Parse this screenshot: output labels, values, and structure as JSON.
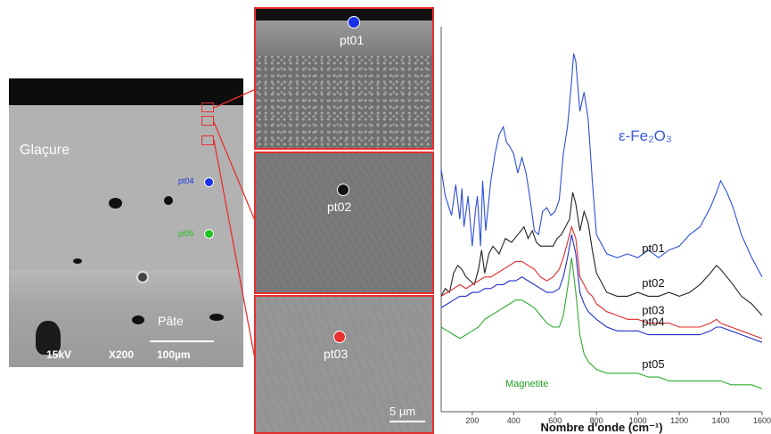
{
  "sem": {
    "label_glacure": "Glaçure",
    "label_pate": "Pâte",
    "voltage": "15kV",
    "magnification": "X200",
    "scale": "100µm",
    "points": [
      {
        "label": "pt04",
        "color": "#1a30e8"
      },
      {
        "label": "pt05",
        "color": "#22c422"
      }
    ]
  },
  "panels": [
    {
      "label": "pt01",
      "color": "#1a30e8"
    },
    {
      "label": "pt02",
      "color": "#111111"
    },
    {
      "label": "pt03",
      "color": "#e8302f"
    }
  ],
  "panel_scale": "5 µm",
  "chart_data": {
    "type": "line",
    "xlabel": "Nombre d'onde (cm⁻¹)",
    "ylabel": "",
    "xlim": [
      50,
      1600
    ],
    "xticks": [
      200,
      400,
      600,
      800,
      1000,
      1200,
      1400,
      1600
    ],
    "annotations": [
      {
        "text": "ε-Fe₂O₃",
        "color": "#3a5bd6"
      },
      {
        "text": "Magnetite",
        "color": "#1e9e1e"
      }
    ],
    "series": [
      {
        "name": "pt01",
        "color": "#2d4fd8",
        "x": [
          50,
          70,
          100,
          120,
          140,
          150,
          160,
          180,
          200,
          215,
          225,
          240,
          250,
          265,
          290,
          310,
          330,
          350,
          365,
          380,
          400,
          420,
          440,
          460,
          480,
          500,
          520,
          540,
          560,
          580,
          600,
          620,
          640,
          660,
          680,
          690,
          700,
          720,
          740,
          760,
          780,
          800,
          850,
          900,
          950,
          1000,
          1050,
          1100,
          1150,
          1200,
          1250,
          1300,
          1350,
          1380,
          1400,
          1430,
          1460,
          1500,
          1550,
          1600
        ],
        "y": [
          0.63,
          0.56,
          0.51,
          0.59,
          0.5,
          0.58,
          0.48,
          0.56,
          0.43,
          0.52,
          0.56,
          0.43,
          0.6,
          0.47,
          0.6,
          0.67,
          0.72,
          0.74,
          0.7,
          0.69,
          0.67,
          0.62,
          0.66,
          0.62,
          0.55,
          0.47,
          0.46,
          0.52,
          0.53,
          0.51,
          0.52,
          0.55,
          0.67,
          0.74,
          0.86,
          0.93,
          0.91,
          0.78,
          0.83,
          0.76,
          0.6,
          0.46,
          0.41,
          0.4,
          0.41,
          0.4,
          0.42,
          0.4,
          0.42,
          0.43,
          0.46,
          0.48,
          0.53,
          0.57,
          0.6,
          0.57,
          0.53,
          0.46,
          0.4,
          0.35
        ]
      },
      {
        "name": "pt02",
        "color": "#222222",
        "x": [
          50,
          70,
          90,
          110,
          130,
          150,
          170,
          190,
          210,
          230,
          245,
          260,
          280,
          300,
          330,
          360,
          390,
          420,
          450,
          470,
          490,
          510,
          530,
          550,
          570,
          590,
          610,
          630,
          650,
          670,
          685,
          700,
          720,
          740,
          760,
          780,
          800,
          850,
          900,
          950,
          1000,
          1050,
          1100,
          1150,
          1200,
          1250,
          1300,
          1350,
          1380,
          1400,
          1430,
          1460,
          1500,
          1550,
          1600
        ],
        "y": [
          0.3,
          0.32,
          0.31,
          0.36,
          0.38,
          0.37,
          0.35,
          0.34,
          0.33,
          0.37,
          0.42,
          0.36,
          0.41,
          0.43,
          0.41,
          0.45,
          0.44,
          0.46,
          0.48,
          0.45,
          0.47,
          0.44,
          0.43,
          0.43,
          0.43,
          0.43,
          0.45,
          0.46,
          0.48,
          0.5,
          0.57,
          0.54,
          0.47,
          0.52,
          0.49,
          0.42,
          0.36,
          0.31,
          0.3,
          0.3,
          0.31,
          0.3,
          0.3,
          0.31,
          0.3,
          0.31,
          0.33,
          0.36,
          0.38,
          0.37,
          0.35,
          0.33,
          0.3,
          0.28,
          0.25
        ]
      },
      {
        "name": "pt03",
        "color": "#e02a2a",
        "x": [
          50,
          80,
          110,
          140,
          170,
          200,
          230,
          260,
          290,
          320,
          350,
          380,
          410,
          440,
          470,
          500,
          530,
          560,
          590,
          620,
          640,
          660,
          680,
          700,
          720,
          740,
          760,
          780,
          800,
          850,
          900,
          950,
          1000,
          1050,
          1100,
          1150,
          1200,
          1250,
          1300,
          1350,
          1380,
          1400,
          1450,
          1500,
          1550,
          1600
        ],
        "y": [
          0.3,
          0.31,
          0.32,
          0.33,
          0.32,
          0.33,
          0.34,
          0.35,
          0.35,
          0.36,
          0.37,
          0.38,
          0.39,
          0.39,
          0.38,
          0.37,
          0.35,
          0.34,
          0.35,
          0.37,
          0.4,
          0.44,
          0.48,
          0.45,
          0.35,
          0.33,
          0.31,
          0.3,
          0.28,
          0.26,
          0.25,
          0.24,
          0.24,
          0.23,
          0.23,
          0.23,
          0.22,
          0.22,
          0.22,
          0.23,
          0.24,
          0.23,
          0.22,
          0.21,
          0.2,
          0.19
        ]
      },
      {
        "name": "pt04",
        "color": "#2230c8",
        "x": [
          50,
          80,
          110,
          140,
          170,
          200,
          230,
          260,
          290,
          320,
          350,
          380,
          410,
          440,
          470,
          500,
          530,
          560,
          590,
          620,
          640,
          660,
          680,
          700,
          720,
          740,
          760,
          780,
          800,
          850,
          900,
          950,
          1000,
          1050,
          1100,
          1150,
          1200,
          1250,
          1300,
          1350,
          1380,
          1400,
          1450,
          1500,
          1550,
          1600
        ],
        "y": [
          0.27,
          0.28,
          0.29,
          0.3,
          0.3,
          0.31,
          0.31,
          0.32,
          0.32,
          0.33,
          0.33,
          0.34,
          0.34,
          0.35,
          0.34,
          0.33,
          0.32,
          0.31,
          0.31,
          0.32,
          0.35,
          0.4,
          0.46,
          0.41,
          0.31,
          0.28,
          0.26,
          0.25,
          0.24,
          0.22,
          0.21,
          0.21,
          0.21,
          0.2,
          0.2,
          0.2,
          0.2,
          0.2,
          0.2,
          0.21,
          0.22,
          0.22,
          0.21,
          0.2,
          0.19,
          0.18
        ]
      },
      {
        "name": "pt05",
        "color": "#2eaa2e",
        "x": [
          50,
          80,
          110,
          140,
          170,
          200,
          230,
          260,
          290,
          320,
          350,
          380,
          410,
          440,
          470,
          500,
          530,
          560,
          590,
          620,
          640,
          660,
          680,
          700,
          720,
          740,
          760,
          780,
          800,
          850,
          900,
          950,
          1000,
          1050,
          1100,
          1150,
          1200,
          1250,
          1300,
          1350,
          1400,
          1450,
          1500,
          1550,
          1600
        ],
        "y": [
          0.22,
          0.21,
          0.2,
          0.19,
          0.2,
          0.21,
          0.22,
          0.24,
          0.25,
          0.26,
          0.27,
          0.28,
          0.29,
          0.29,
          0.28,
          0.27,
          0.25,
          0.23,
          0.22,
          0.22,
          0.25,
          0.32,
          0.4,
          0.31,
          0.2,
          0.15,
          0.13,
          0.12,
          0.11,
          0.1,
          0.1,
          0.1,
          0.1,
          0.09,
          0.09,
          0.08,
          0.08,
          0.08,
          0.08,
          0.08,
          0.08,
          0.07,
          0.07,
          0.07,
          0.06
        ]
      }
    ]
  }
}
